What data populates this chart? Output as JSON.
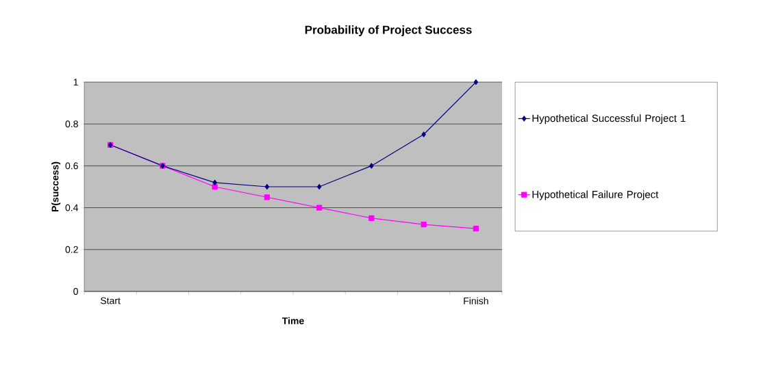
{
  "chart_data": {
    "type": "line",
    "title": "Probability of Project Success",
    "xlabel": "Time",
    "ylabel": "P(success)",
    "categories": [
      "Start",
      null,
      null,
      null,
      null,
      null,
      null,
      "Finish"
    ],
    "series": [
      {
        "name": "Hypothetical Successful Project 1",
        "color": "#000080",
        "marker": "diamond",
        "values": [
          0.7,
          0.6,
          0.52,
          0.5,
          0.5,
          0.6,
          0.75,
          1
        ]
      },
      {
        "name": "Hypothetical Failure Project",
        "color": "#ff00ff",
        "marker": "square",
        "values": [
          0.7,
          0.6,
          0.5,
          0.45,
          0.4,
          0.35,
          0.32,
          0.3
        ]
      }
    ],
    "ylim": [
      0,
      1
    ],
    "yticks": [
      0,
      0.2,
      0.4,
      0.6,
      0.8,
      1
    ],
    "grid": "y",
    "legend": "right"
  }
}
